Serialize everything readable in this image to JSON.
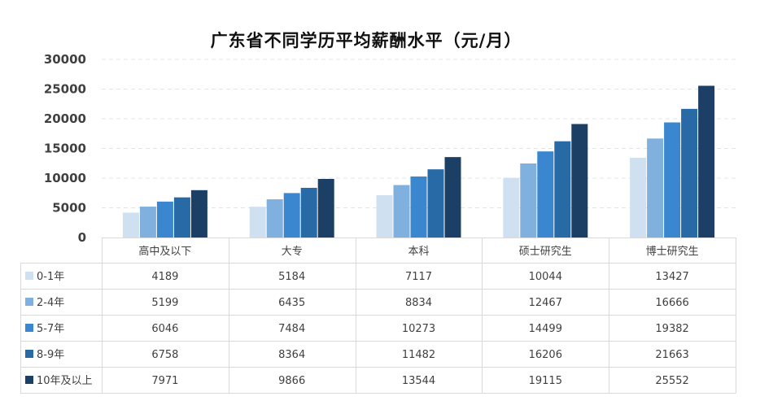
{
  "chart_data": {
    "type": "bar",
    "title": "广东省不同学历平均薪酬水平（元/月）",
    "categories": [
      "高中及以下",
      "大专",
      "本科",
      "硕士研究生",
      "博士研究生"
    ],
    "series": [
      {
        "name": "0-1年",
        "color": "#cfe0f1",
        "values": [
          4189,
          5184,
          7117,
          10044,
          13427
        ]
      },
      {
        "name": "2-4年",
        "color": "#7fb0de",
        "values": [
          5199,
          6435,
          8834,
          12467,
          16666
        ]
      },
      {
        "name": "5-7年",
        "color": "#3a87cf",
        "values": [
          6046,
          7484,
          10273,
          14499,
          19382
        ]
      },
      {
        "name": "8-9年",
        "color": "#276aa5",
        "values": [
          6758,
          8364,
          11482,
          16206,
          21663
        ]
      },
      {
        "name": "10年及以上",
        "color": "#1c3f66",
        "values": [
          7971,
          9866,
          13544,
          19115,
          25552
        ]
      }
    ],
    "ylim": [
      0,
      30000
    ],
    "yticks": [
      0,
      5000,
      10000,
      15000,
      20000,
      25000,
      30000
    ],
    "grid": true,
    "legend": "data-table",
    "xlabel": "",
    "ylabel": ""
  }
}
